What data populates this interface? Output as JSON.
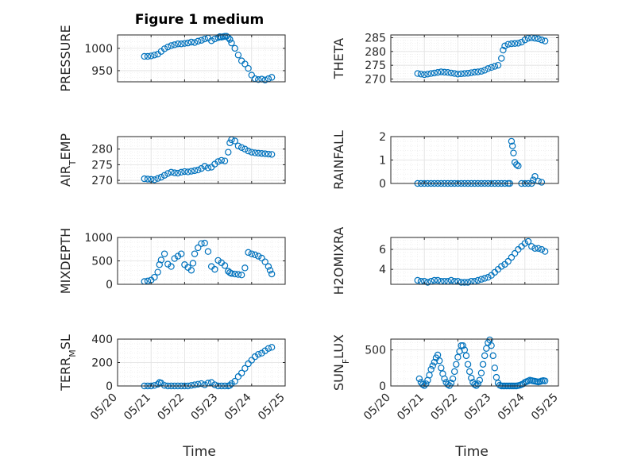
{
  "figure": {
    "title": "Figure 1 medium",
    "xlabel": "Time",
    "marker_color": "#0072BD",
    "x_tick_labels": [
      "05/20",
      "05/21",
      "05/22",
      "05/23",
      "05/24",
      "05/25"
    ]
  },
  "chart_data": [
    {
      "type": "scatter",
      "ylabel": "PRESSURE",
      "xlim": [
        "05/20",
        "05/25"
      ],
      "ylim": [
        925,
        1030
      ],
      "yticks": [
        950,
        1000
      ],
      "grid": true,
      "x_days": [
        0.8,
        0.9,
        1.0,
        1.1,
        1.2,
        1.3,
        1.4,
        1.5,
        1.6,
        1.7,
        1.8,
        1.9,
        2.0,
        2.1,
        2.2,
        2.3,
        2.4,
        2.5,
        2.6,
        2.7,
        2.8,
        2.9,
        3.0,
        3.05,
        3.1,
        3.15,
        3.2,
        3.25,
        3.3,
        3.35,
        3.4,
        3.5,
        3.6,
        3.7,
        3.8,
        3.9,
        4.0,
        4.1,
        4.2,
        4.3,
        4.4,
        4.5,
        4.6
      ],
      "y": [
        982,
        982,
        983,
        985,
        987,
        993,
        999,
        1003,
        1006,
        1008,
        1010,
        1010,
        1011,
        1012,
        1014,
        1013,
        1016,
        1018,
        1021,
        1023,
        1017,
        1021,
        1024,
        1026,
        1025,
        1026,
        1027,
        1027,
        1024,
        1020,
        1012,
        1000,
        985,
        972,
        965,
        955,
        940,
        932,
        930,
        931,
        929,
        932,
        935
      ]
    },
    {
      "type": "scatter",
      "ylabel": "THETA",
      "xlim": [
        "05/20",
        "05/25"
      ],
      "ylim": [
        269,
        286
      ],
      "yticks": [
        270,
        275,
        280,
        285
      ],
      "grid": true,
      "x_days": [
        0.8,
        0.9,
        1.0,
        1.1,
        1.2,
        1.3,
        1.4,
        1.5,
        1.6,
        1.7,
        1.8,
        1.9,
        2.0,
        2.1,
        2.2,
        2.3,
        2.4,
        2.5,
        2.6,
        2.7,
        2.8,
        2.9,
        3.0,
        3.1,
        3.2,
        3.3,
        3.35,
        3.4,
        3.5,
        3.6,
        3.7,
        3.8,
        3.9,
        4.0,
        4.1,
        4.2,
        4.3,
        4.4,
        4.5,
        4.6
      ],
      "y": [
        272.0,
        271.8,
        271.6,
        271.8,
        272.0,
        272.2,
        272.4,
        272.6,
        272.5,
        272.4,
        272.2,
        272.0,
        271.8,
        271.9,
        272.0,
        272.1,
        272.3,
        272.5,
        272.6,
        272.8,
        273.2,
        273.8,
        274.2,
        274.6,
        275.0,
        277.5,
        280.5,
        282.0,
        282.6,
        282.8,
        282.9,
        283.0,
        283.4,
        284.2,
        284.8,
        285.0,
        284.8,
        284.6,
        284.2,
        283.8
      ]
    },
    {
      "type": "scatter",
      "ylabel": "AIR_TEMP",
      "xlim": [
        "05/20",
        "05/25"
      ],
      "ylim": [
        269,
        284
      ],
      "yticks": [
        270,
        275,
        280
      ],
      "grid": true,
      "x_days": [
        0.8,
        0.9,
        1.0,
        1.1,
        1.2,
        1.3,
        1.4,
        1.5,
        1.6,
        1.7,
        1.8,
        1.9,
        2.0,
        2.1,
        2.2,
        2.3,
        2.4,
        2.5,
        2.6,
        2.7,
        2.8,
        2.9,
        3.0,
        3.1,
        3.2,
        3.3,
        3.35,
        3.4,
        3.5,
        3.6,
        3.7,
        3.8,
        3.9,
        4.0,
        4.1,
        4.2,
        4.3,
        4.4,
        4.5,
        4.6
      ],
      "y": [
        270.5,
        270.4,
        270.3,
        270.2,
        270.6,
        271.0,
        271.6,
        272.2,
        272.6,
        272.4,
        272.3,
        272.6,
        272.8,
        272.7,
        272.9,
        273.1,
        273.3,
        273.8,
        274.5,
        274.0,
        274.2,
        275.2,
        276.0,
        276.4,
        276.2,
        279.0,
        282.0,
        283.0,
        282.6,
        281.0,
        280.5,
        280.0,
        279.4,
        279.0,
        278.8,
        278.7,
        278.6,
        278.5,
        278.4,
        278.3
      ]
    },
    {
      "type": "scatter",
      "ylabel": "RAINFALL",
      "xlim": [
        "05/20",
        "05/25"
      ],
      "ylim": [
        0,
        2
      ],
      "yticks": [
        0,
        1,
        2
      ],
      "grid": true,
      "x_days": [
        0.8,
        0.9,
        1.0,
        1.1,
        1.2,
        1.3,
        1.4,
        1.5,
        1.6,
        1.7,
        1.8,
        1.9,
        2.0,
        2.1,
        2.2,
        2.3,
        2.4,
        2.5,
        2.6,
        2.7,
        2.8,
        2.9,
        3.0,
        3.1,
        3.2,
        3.3,
        3.4,
        3.5,
        3.55,
        3.6,
        3.63,
        3.66,
        3.7,
        3.75,
        3.8,
        3.9,
        4.0,
        4.1,
        4.2,
        4.25,
        4.3,
        4.4,
        4.5
      ],
      "y": [
        0,
        0,
        0,
        0,
        0,
        0,
        0,
        0,
        0,
        0,
        0,
        0,
        0,
        0,
        0,
        0,
        0,
        0,
        0,
        0,
        0,
        0,
        0,
        0,
        0,
        0,
        0,
        0,
        0,
        1.8,
        1.6,
        1.3,
        0.9,
        0.8,
        0.75,
        0,
        0,
        0,
        0,
        0.15,
        0.3,
        0.1,
        0.05
      ]
    },
    {
      "type": "scatter",
      "ylabel": "MIXDEPTH",
      "xlim": [
        "05/20",
        "05/25"
      ],
      "ylim": [
        0,
        1000
      ],
      "yticks": [
        0,
        500,
        1000
      ],
      "grid": true,
      "x_days": [
        0.8,
        0.9,
        1.0,
        1.1,
        1.2,
        1.25,
        1.3,
        1.4,
        1.5,
        1.6,
        1.7,
        1.8,
        1.9,
        2.0,
        2.1,
        2.2,
        2.25,
        2.3,
        2.4,
        2.5,
        2.6,
        2.7,
        2.8,
        2.9,
        3.0,
        3.1,
        3.2,
        3.3,
        3.35,
        3.4,
        3.5,
        3.6,
        3.7,
        3.8,
        3.9,
        4.0,
        4.1,
        4.2,
        4.3,
        4.4,
        4.5,
        4.55,
        4.6
      ],
      "y": [
        60,
        70,
        90,
        150,
        260,
        420,
        520,
        650,
        430,
        380,
        550,
        600,
        650,
        420,
        360,
        300,
        450,
        650,
        780,
        870,
        880,
        700,
        380,
        320,
        510,
        460,
        400,
        280,
        250,
        230,
        220,
        210,
        200,
        350,
        680,
        650,
        630,
        600,
        560,
        480,
        380,
        300,
        220
      ]
    },
    {
      "type": "scatter",
      "ylabel": "H2OMIXRA",
      "xlim": [
        "05/20",
        "05/25"
      ],
      "ylim": [
        2.5,
        7.2
      ],
      "yticks": [
        4,
        6
      ],
      "grid": true,
      "x_days": [
        0.8,
        0.9,
        1.0,
        1.1,
        1.2,
        1.3,
        1.4,
        1.5,
        1.6,
        1.7,
        1.8,
        1.9,
        2.0,
        2.1,
        2.2,
        2.3,
        2.4,
        2.5,
        2.6,
        2.7,
        2.8,
        2.9,
        3.0,
        3.1,
        3.2,
        3.3,
        3.4,
        3.5,
        3.6,
        3.7,
        3.8,
        3.9,
        4.0,
        4.1,
        4.2,
        4.3,
        4.4,
        4.5,
        4.6
      ],
      "y": [
        2.9,
        2.8,
        2.8,
        2.7,
        2.8,
        2.9,
        2.9,
        2.8,
        2.8,
        2.8,
        2.9,
        2.8,
        2.8,
        2.7,
        2.7,
        2.7,
        2.8,
        2.8,
        2.9,
        3.0,
        3.1,
        3.2,
        3.4,
        3.7,
        4.0,
        4.3,
        4.5,
        4.8,
        5.2,
        5.6,
        6.0,
        6.3,
        6.6,
        6.8,
        6.3,
        6.1,
        6.1,
        6.0,
        5.8
      ]
    },
    {
      "type": "scatter",
      "ylabel": "TERR_MSL",
      "xlim": [
        "05/20",
        "05/25"
      ],
      "ylim": [
        0,
        400
      ],
      "yticks": [
        0,
        200,
        400
      ],
      "grid": true,
      "x_days": [
        0.8,
        0.9,
        1.0,
        1.1,
        1.2,
        1.25,
        1.3,
        1.4,
        1.5,
        1.6,
        1.7,
        1.8,
        1.9,
        2.0,
        2.1,
        2.2,
        2.3,
        2.4,
        2.5,
        2.6,
        2.7,
        2.8,
        2.9,
        3.0,
        3.1,
        3.2,
        3.3,
        3.35,
        3.4,
        3.5,
        3.6,
        3.7,
        3.8,
        3.9,
        4.0,
        4.1,
        4.2,
        4.3,
        4.4,
        4.5,
        4.6
      ],
      "y": [
        0,
        0,
        0,
        5,
        15,
        30,
        25,
        5,
        0,
        0,
        0,
        0,
        0,
        0,
        0,
        5,
        10,
        15,
        20,
        10,
        25,
        30,
        10,
        0,
        0,
        0,
        0,
        5,
        20,
        40,
        80,
        110,
        150,
        190,
        220,
        250,
        270,
        280,
        300,
        320,
        330
      ]
    },
    {
      "type": "scatter",
      "ylabel": "SUN_FLUX",
      "xlim": [
        "05/20",
        "05/25"
      ],
      "ylim": [
        0,
        650
      ],
      "yticks": [
        0,
        500
      ],
      "grid": true,
      "x_days": [
        0.85,
        0.9,
        0.95,
        1.0,
        1.05,
        1.1,
        1.15,
        1.2,
        1.25,
        1.3,
        1.35,
        1.4,
        1.45,
        1.5,
        1.55,
        1.6,
        1.65,
        1.7,
        1.75,
        1.8,
        1.85,
        1.9,
        1.95,
        2.0,
        2.05,
        2.1,
        2.15,
        2.2,
        2.25,
        2.3,
        2.35,
        2.4,
        2.45,
        2.5,
        2.55,
        2.6,
        2.65,
        2.7,
        2.75,
        2.8,
        2.85,
        2.9,
        2.95,
        3.0,
        3.05,
        3.1,
        3.15,
        3.2,
        3.25,
        3.3,
        3.35,
        3.4,
        3.45,
        3.5,
        3.55,
        3.6,
        3.65,
        3.7,
        3.75,
        3.8,
        3.85,
        3.9,
        3.95,
        4.0,
        4.05,
        4.1,
        4.15,
        4.2,
        4.25,
        4.3,
        4.35,
        4.4,
        4.45,
        4.5,
        4.55,
        4.6
      ],
      "y": [
        100,
        50,
        20,
        5,
        30,
        80,
        150,
        230,
        280,
        330,
        390,
        430,
        350,
        250,
        170,
        100,
        50,
        20,
        5,
        40,
        100,
        200,
        300,
        400,
        480,
        560,
        560,
        500,
        420,
        300,
        200,
        110,
        50,
        20,
        5,
        30,
        80,
        180,
        300,
        420,
        520,
        600,
        640,
        560,
        420,
        250,
        120,
        40,
        10,
        0,
        0,
        0,
        0,
        0,
        0,
        0,
        0,
        0,
        0,
        5,
        10,
        20,
        30,
        50,
        60,
        70,
        80,
        75,
        70,
        65,
        60,
        55,
        60,
        70,
        75,
        70
      ]
    }
  ]
}
